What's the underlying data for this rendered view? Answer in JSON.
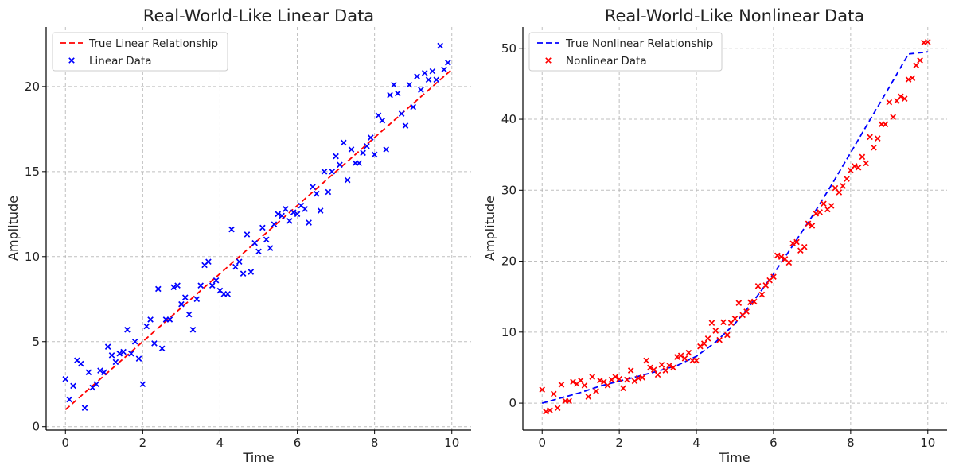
{
  "chart_data": [
    {
      "type": "scatter",
      "title": "Real-World-Like Linear Data",
      "xlabel": "Time",
      "ylabel": "Amplitude",
      "xlim": [
        -0.5,
        10.5
      ],
      "ylim": [
        -0.2,
        23.5
      ],
      "xticks": [
        0,
        2,
        4,
        6,
        8,
        10
      ],
      "yticks": [
        0,
        5,
        10,
        15,
        20
      ],
      "grid": true,
      "legend": "top-left",
      "line": {
        "name": "True Linear Relationship",
        "color": "#ff0000",
        "style": "dashed",
        "x": [
          0,
          10
        ],
        "y": [
          1,
          21
        ]
      },
      "scatter": {
        "name": "Linear Data",
        "color": "#0000ff",
        "marker": "x",
        "points": [
          [
            0.0,
            2.8
          ],
          [
            0.1,
            1.6
          ],
          [
            0.2,
            2.4
          ],
          [
            0.3,
            3.9
          ],
          [
            0.4,
            3.7
          ],
          [
            0.5,
            1.1
          ],
          [
            0.6,
            3.2
          ],
          [
            0.7,
            2.3
          ],
          [
            0.8,
            2.5
          ],
          [
            0.9,
            3.3
          ],
          [
            1.0,
            3.2
          ],
          [
            1.1,
            4.7
          ],
          [
            1.2,
            4.2
          ],
          [
            1.3,
            3.8
          ],
          [
            1.4,
            4.3
          ],
          [
            1.5,
            4.4
          ],
          [
            1.6,
            5.7
          ],
          [
            1.7,
            4.3
          ],
          [
            1.8,
            5.0
          ],
          [
            1.9,
            4.0
          ],
          [
            2.0,
            2.5
          ],
          [
            2.1,
            5.9
          ],
          [
            2.2,
            6.3
          ],
          [
            2.3,
            4.9
          ],
          [
            2.4,
            8.1
          ],
          [
            2.5,
            4.6
          ],
          [
            2.6,
            6.3
          ],
          [
            2.7,
            6.3
          ],
          [
            2.8,
            8.2
          ],
          [
            2.9,
            8.3
          ],
          [
            3.0,
            7.2
          ],
          [
            3.1,
            7.6
          ],
          [
            3.2,
            6.6
          ],
          [
            3.3,
            5.7
          ],
          [
            3.4,
            7.5
          ],
          [
            3.5,
            8.3
          ],
          [
            3.6,
            9.5
          ],
          [
            3.7,
            9.7
          ],
          [
            3.8,
            8.3
          ],
          [
            3.9,
            8.6
          ],
          [
            4.0,
            8.0
          ],
          [
            4.1,
            7.8
          ],
          [
            4.2,
            7.8
          ],
          [
            4.3,
            11.6
          ],
          [
            4.4,
            9.4
          ],
          [
            4.5,
            9.7
          ],
          [
            4.6,
            9.0
          ],
          [
            4.7,
            11.3
          ],
          [
            4.8,
            9.1
          ],
          [
            4.9,
            10.8
          ],
          [
            5.0,
            10.3
          ],
          [
            5.1,
            11.7
          ],
          [
            5.2,
            11.0
          ],
          [
            5.3,
            10.5
          ],
          [
            5.4,
            11.9
          ],
          [
            5.5,
            12.5
          ],
          [
            5.6,
            12.4
          ],
          [
            5.7,
            12.8
          ],
          [
            5.8,
            12.1
          ],
          [
            5.9,
            12.6
          ],
          [
            6.0,
            12.5
          ],
          [
            6.1,
            13.0
          ],
          [
            6.2,
            12.8
          ],
          [
            6.3,
            12.0
          ],
          [
            6.4,
            14.1
          ],
          [
            6.5,
            13.7
          ],
          [
            6.6,
            12.7
          ],
          [
            6.7,
            15.0
          ],
          [
            6.8,
            13.8
          ],
          [
            6.9,
            15.0
          ],
          [
            7.0,
            15.9
          ],
          [
            7.1,
            15.4
          ],
          [
            7.2,
            16.7
          ],
          [
            7.3,
            14.5
          ],
          [
            7.4,
            16.3
          ],
          [
            7.5,
            15.5
          ],
          [
            7.6,
            15.5
          ],
          [
            7.7,
            16.1
          ],
          [
            7.8,
            16.5
          ],
          [
            7.9,
            17.0
          ],
          [
            8.0,
            16.0
          ],
          [
            8.1,
            18.3
          ],
          [
            8.2,
            18.0
          ],
          [
            8.3,
            16.3
          ],
          [
            8.4,
            19.5
          ],
          [
            8.5,
            20.1
          ],
          [
            8.6,
            19.6
          ],
          [
            8.7,
            18.4
          ],
          [
            8.8,
            17.7
          ],
          [
            8.9,
            20.1
          ],
          [
            9.0,
            18.8
          ],
          [
            9.1,
            20.6
          ],
          [
            9.2,
            19.8
          ],
          [
            9.3,
            20.8
          ],
          [
            9.4,
            20.4
          ],
          [
            9.5,
            20.9
          ],
          [
            9.6,
            20.4
          ],
          [
            9.7,
            22.4
          ],
          [
            9.8,
            21.0
          ],
          [
            9.9,
            21.4
          ]
        ]
      }
    },
    {
      "type": "scatter",
      "title": "Real-World-Like Nonlinear Data",
      "xlabel": "Time",
      "ylabel": "Amplitude",
      "xlim": [
        -0.5,
        10.5
      ],
      "ylim": [
        -3.8,
        53
      ],
      "xticks": [
        0,
        2,
        4,
        6,
        8,
        10
      ],
      "yticks": [
        0,
        10,
        20,
        30,
        40,
        50
      ],
      "grid": true,
      "legend": "top-left",
      "line": {
        "name": "True Nonlinear Relationship",
        "color": "#0000ff",
        "style": "dashed",
        "x": [
          0,
          0.5,
          1,
          1.5,
          2,
          2.5,
          3,
          3.5,
          4,
          4.5,
          5,
          5.5,
          6,
          6.5,
          7,
          7.5,
          8,
          8.5,
          9,
          9.5,
          10
        ],
        "y": [
          0,
          0.75,
          1.5,
          2.4,
          3.1,
          3.8,
          4.5,
          5.3,
          6.6,
          8.6,
          11.2,
          14.5,
          18.2,
          22.2,
          26.3,
          30.7,
          35.3,
          39.9,
          44.5,
          49.2,
          49.5
        ]
      },
      "scatter": {
        "name": "Nonlinear Data",
        "color": "#ff0000",
        "marker": "x",
        "points": [
          [
            0.0,
            1.9
          ],
          [
            0.1,
            -1.2
          ],
          [
            0.2,
            -1.0
          ],
          [
            0.3,
            1.3
          ],
          [
            0.4,
            -0.7
          ],
          [
            0.5,
            2.6
          ],
          [
            0.6,
            0.3
          ],
          [
            0.7,
            0.3
          ],
          [
            0.8,
            3.0
          ],
          [
            0.9,
            2.7
          ],
          [
            1.0,
            3.2
          ],
          [
            1.1,
            2.5
          ],
          [
            1.2,
            0.9
          ],
          [
            1.3,
            3.7
          ],
          [
            1.4,
            1.7
          ],
          [
            1.5,
            3.2
          ],
          [
            1.6,
            3.0
          ],
          [
            1.7,
            2.5
          ],
          [
            1.8,
            3.3
          ],
          [
            1.9,
            3.7
          ],
          [
            2.0,
            3.4
          ],
          [
            2.1,
            2.1
          ],
          [
            2.2,
            3.3
          ],
          [
            2.3,
            4.6
          ],
          [
            2.4,
            3.1
          ],
          [
            2.5,
            3.5
          ],
          [
            2.6,
            3.6
          ],
          [
            2.7,
            6.0
          ],
          [
            2.8,
            5.0
          ],
          [
            2.9,
            4.7
          ],
          [
            3.0,
            4.0
          ],
          [
            3.1,
            5.4
          ],
          [
            3.2,
            4.6
          ],
          [
            3.3,
            5.3
          ],
          [
            3.4,
            5.0
          ],
          [
            3.5,
            6.5
          ],
          [
            3.6,
            6.7
          ],
          [
            3.7,
            6.3
          ],
          [
            3.8,
            7.1
          ],
          [
            3.9,
            6.0
          ],
          [
            4.0,
            6.0
          ],
          [
            4.1,
            8.0
          ],
          [
            4.2,
            8.4
          ],
          [
            4.3,
            9.1
          ],
          [
            4.4,
            11.3
          ],
          [
            4.5,
            10.2
          ],
          [
            4.6,
            8.9
          ],
          [
            4.7,
            11.4
          ],
          [
            4.8,
            9.6
          ],
          [
            4.9,
            11.3
          ],
          [
            5.0,
            11.9
          ],
          [
            5.1,
            14.1
          ],
          [
            5.2,
            12.4
          ],
          [
            5.3,
            12.9
          ],
          [
            5.4,
            14.2
          ],
          [
            5.5,
            14.3
          ],
          [
            5.6,
            16.5
          ],
          [
            5.7,
            15.3
          ],
          [
            5.8,
            16.6
          ],
          [
            5.9,
            17.3
          ],
          [
            6.0,
            17.8
          ],
          [
            6.1,
            20.8
          ],
          [
            6.2,
            20.6
          ],
          [
            6.3,
            20.3
          ],
          [
            6.4,
            19.8
          ],
          [
            6.5,
            22.5
          ],
          [
            6.6,
            22.7
          ],
          [
            6.7,
            21.5
          ],
          [
            6.8,
            22.0
          ],
          [
            6.9,
            25.3
          ],
          [
            7.0,
            25.0
          ],
          [
            7.1,
            26.7
          ],
          [
            7.2,
            26.9
          ],
          [
            7.3,
            28.1
          ],
          [
            7.4,
            27.3
          ],
          [
            7.5,
            27.8
          ],
          [
            7.6,
            30.3
          ],
          [
            7.7,
            29.7
          ],
          [
            7.8,
            30.6
          ],
          [
            7.9,
            31.6
          ],
          [
            8.0,
            32.8
          ],
          [
            8.1,
            33.4
          ],
          [
            8.2,
            33.2
          ],
          [
            8.3,
            34.7
          ],
          [
            8.4,
            33.8
          ],
          [
            8.5,
            37.5
          ],
          [
            8.6,
            36.0
          ],
          [
            8.7,
            37.3
          ],
          [
            8.8,
            39.3
          ],
          [
            8.9,
            39.3
          ],
          [
            9.0,
            42.4
          ],
          [
            9.1,
            40.3
          ],
          [
            9.2,
            42.6
          ],
          [
            9.3,
            43.2
          ],
          [
            9.4,
            42.9
          ],
          [
            9.5,
            45.6
          ],
          [
            9.6,
            45.8
          ],
          [
            9.7,
            47.6
          ],
          [
            9.8,
            48.3
          ],
          [
            9.9,
            50.8
          ],
          [
            10.0,
            50.9
          ]
        ]
      }
    }
  ]
}
